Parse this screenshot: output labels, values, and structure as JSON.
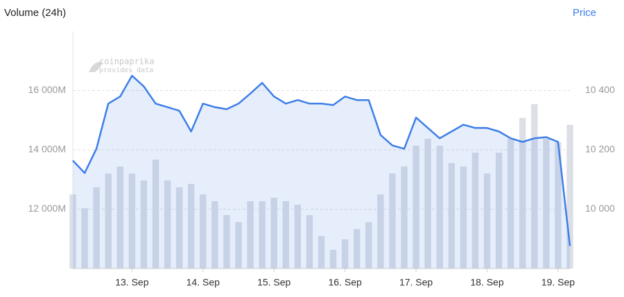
{
  "chart_data": {
    "type": "line",
    "title": "Volume (24h)",
    "price_label": "Price",
    "watermark": [
      "coinpaprika",
      "provides data"
    ],
    "categories": [
      null,
      null,
      null,
      null,
      null,
      "13. Sep",
      null,
      null,
      null,
      null,
      null,
      "14. Sep",
      null,
      null,
      null,
      null,
      null,
      "15. Sep",
      null,
      null,
      null,
      null,
      null,
      "16. Sep",
      null,
      null,
      null,
      null,
      null,
      "17. Sep",
      null,
      null,
      null,
      null,
      null,
      "18. Sep",
      null,
      null,
      null,
      null,
      null,
      "19. Sep",
      null
    ],
    "series": [
      {
        "name": "Volume (24h)",
        "kind": "bars",
        "color": "#dcdfe6",
        "values": [
          12500,
          12035,
          12737,
          13205,
          13440,
          13205,
          12971,
          13673,
          12971,
          12737,
          12854,
          12503,
          12269,
          11801,
          11567,
          12269,
          12269,
          12386,
          12269,
          12152,
          11801,
          11099,
          10632,
          10982,
          11333,
          11567,
          12503,
          13205,
          13440,
          14140,
          14374,
          14140,
          13556,
          13440,
          13906,
          13205,
          13906,
          14374,
          15076,
          15544,
          14374,
          14257,
          14842
        ]
      },
      {
        "name": "Price",
        "kind": "line",
        "axis": "y2",
        "color": "#3d7ee8",
        "values": [
          10164,
          10122,
          10204,
          10356,
          10380,
          10450,
          10414,
          10356,
          10344,
          10332,
          10262,
          10356,
          10344,
          10337,
          10356,
          10390,
          10426,
          10380,
          10356,
          10368,
          10356,
          10356,
          10351,
          10380,
          10368,
          10368,
          10250,
          10215,
          10204,
          10309,
          10274,
          10239,
          10262,
          10285,
          10274,
          10274,
          10262,
          10239,
          10227,
          10239,
          10243,
          10227,
          9876
        ]
      }
    ],
    "ylim": [
      10000,
      18000
    ],
    "yticks": [
      {
        "value": 12000,
        "label": "12 000M"
      },
      {
        "value": 14000,
        "label": "14 000M"
      },
      {
        "value": 16000,
        "label": "16 000M"
      }
    ],
    "y2lim": [
      9800,
      10600
    ],
    "y2ticks": [
      {
        "value": 10000,
        "label": "10 000"
      },
      {
        "value": 10200,
        "label": "10 200"
      },
      {
        "value": 10400,
        "label": "10 400"
      }
    ],
    "grid": true
  }
}
